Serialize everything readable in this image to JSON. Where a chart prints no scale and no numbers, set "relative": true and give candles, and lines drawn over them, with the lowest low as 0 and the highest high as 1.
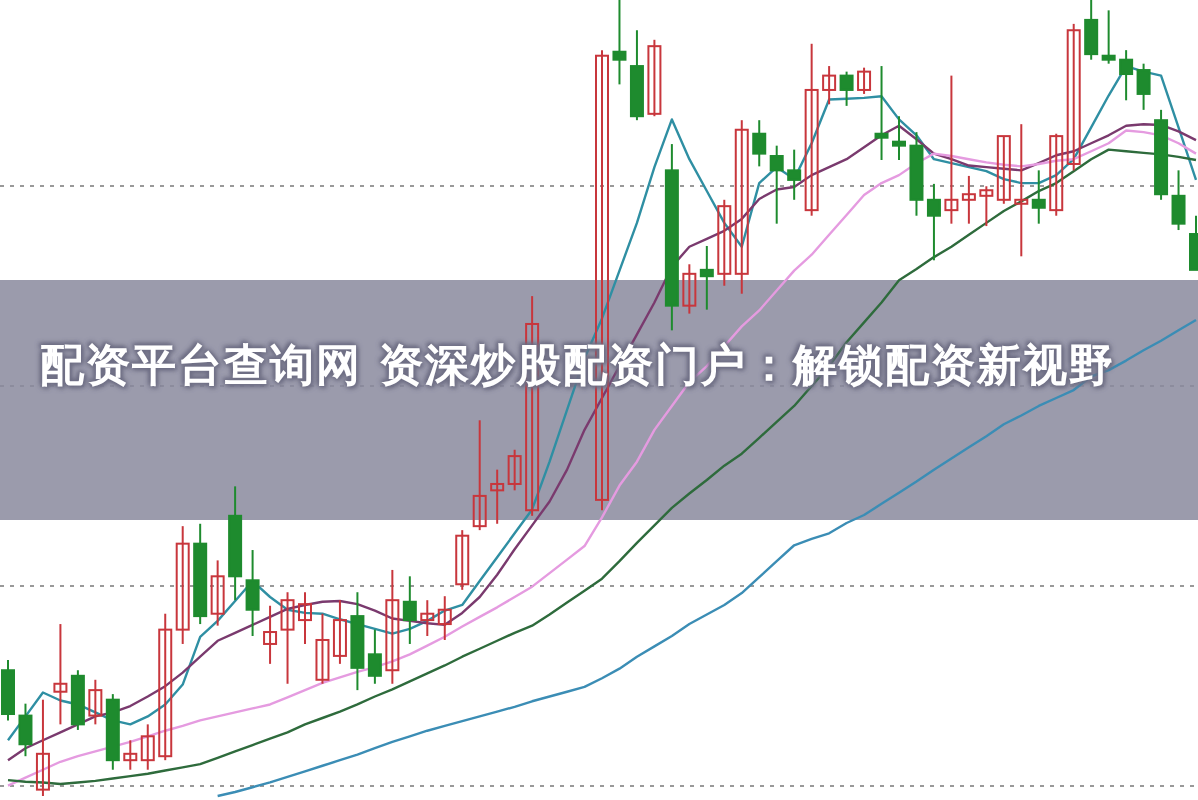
{
  "chart_data": {
    "type": "candlestick",
    "title": "配资平台查询网 资深炒股配资门户：解锁配资新视野",
    "relative": true,
    "grid": "y",
    "categories": [
      null,
      null,
      null,
      null,
      null,
      null,
      null,
      null,
      null,
      null,
      null,
      null,
      null,
      null,
      null,
      null,
      null,
      null,
      null,
      null,
      null,
      null,
      null,
      null,
      null,
      null,
      null,
      null,
      null,
      null,
      null,
      null,
      null,
      null,
      null,
      null,
      null,
      null,
      null,
      null,
      null,
      null,
      null,
      null,
      null,
      null,
      null,
      null,
      null,
      null,
      null,
      null,
      null,
      null,
      null,
      null,
      null,
      null,
      null,
      null,
      null,
      null,
      null,
      null,
      null,
      null,
      null,
      null,
      null
    ],
    "ohlc": [
      [
        0.158,
        0.171,
        0.095,
        0.103
      ],
      [
        0.101,
        0.116,
        0.05,
        0.065
      ],
      [
        0.008,
        0.121,
        0,
        0.053
      ],
      [
        0.131,
        0.216,
        0.09,
        0.141
      ],
      [
        0.151,
        0.158,
        0.083,
        0.09
      ],
      [
        0.101,
        0.146,
        0.09,
        0.133
      ],
      [
        0.121,
        0.128,
        0.033,
        0.045
      ],
      [
        0.045,
        0.07,
        0.033,
        0.053
      ],
      [
        0.045,
        0.09,
        0.033,
        0.075
      ],
      [
        0.05,
        0.229,
        0.045,
        0.209
      ],
      [
        0.209,
        0.339,
        0.191,
        0.317
      ],
      [
        0.317,
        0.342,
        0.216,
        0.226
      ],
      [
        0.229,
        0.296,
        0.214,
        0.276
      ],
      [
        0.352,
        0.389,
        0.246,
        0.276
      ],
      [
        0.271,
        0.309,
        0.201,
        0.234
      ],
      [
        0.191,
        0.239,
        0.166,
        0.206
      ],
      [
        0.209,
        0.256,
        0.141,
        0.246
      ],
      [
        0.221,
        0.256,
        0.191,
        0.241
      ],
      [
        0.146,
        0.229,
        0.141,
        0.196
      ],
      [
        0.176,
        0.246,
        0.166,
        0.221
      ],
      [
        0.226,
        0.256,
        0.133,
        0.161
      ],
      [
        0.178,
        0.209,
        0.141,
        0.151
      ],
      [
        0.158,
        0.284,
        0.141,
        0.246
      ],
      [
        0.244,
        0.276,
        0.191,
        0.221
      ],
      [
        0.221,
        0.246,
        0.201,
        0.229
      ],
      [
        0.216,
        0.251,
        0.196,
        0.234
      ],
      [
        0.266,
        0.334,
        0.259,
        0.327
      ],
      [
        0.339,
        0.472,
        0.334,
        0.377
      ],
      [
        0.384,
        0.41,
        0.342,
        0.392
      ],
      [
        0.392,
        0.435,
        0.384,
        0.427
      ],
      [
        0.359,
        0.628,
        0.352,
        0.593
      ],
      null,
      null,
      null,
      [
        0.372,
        0.937,
        0.359,
        0.93
      ],
      [
        0.935,
        1,
        0.894,
        0.925
      ],
      [
        0.917,
        0.962,
        0.849,
        0.854
      ],
      [
        0.857,
        0.95,
        0.854,
        0.942
      ],
      [
        0.786,
        0.819,
        0.585,
        0.616
      ],
      [
        0.616,
        0.668,
        0.606,
        0.656
      ],
      [
        0.661,
        0.691,
        0.611,
        0.653
      ],
      [
        0.656,
        0.749,
        0.641,
        0.741
      ],
      [
        0.656,
        0.849,
        0.631,
        0.837
      ],
      [
        0.832,
        0.849,
        0.791,
        0.807
      ],
      [
        0.804,
        0.817,
        0.719,
        0.786
      ],
      [
        0.786,
        0.812,
        0.749,
        0.774
      ],
      [
        0.736,
        0.945,
        0.729,
        0.887
      ],
      [
        0.887,
        0.917,
        0.869,
        0.905
      ],
      [
        0.905,
        0.91,
        0.867,
        0.887
      ],
      [
        0.887,
        0.915,
        0.882,
        0.91
      ],
      [
        0.832,
        0.917,
        0.799,
        0.827
      ],
      [
        0.822,
        0.854,
        0.799,
        0.817
      ],
      [
        0.817,
        0.834,
        0.729,
        0.749
      ],
      [
        0.749,
        0.769,
        0.673,
        0.729
      ],
      [
        0.736,
        0.905,
        0.719,
        0.749
      ],
      [
        0.749,
        0.779,
        0.719,
        0.756
      ],
      [
        0.754,
        0.766,
        0.716,
        0.761
      ],
      [
        0.749,
        0.829,
        0.744,
        0.829
      ],
      [
        0.744,
        0.844,
        0.678,
        0.749
      ],
      [
        0.749,
        0.786,
        0.719,
        0.739
      ],
      [
        0.736,
        0.832,
        0.729,
        0.829
      ],
      [
        0.794,
        0.97,
        0.786,
        0.962
      ],
      [
        0.975,
        1,
        0.925,
        0.932
      ],
      [
        0.93,
        0.987,
        0.92,
        0.925
      ],
      [
        0.925,
        0.937,
        0.874,
        0.907
      ],
      [
        0.912,
        0.92,
        0.862,
        0.882
      ],
      [
        0.849,
        0.862,
        0.749,
        0.756
      ],
      [
        0.754,
        0.786,
        0.711,
        0.719
      ],
      [
        0.706,
        0.729,
        0.661,
        0.661
      ]
    ],
    "series": [
      {
        "type": "line",
        "color": "#2f8fa3",
        "values": [
          0.07,
          0.1,
          0.13,
          0.12,
          0.115,
          0.105,
          0.095,
          0.09,
          0.1,
          0.115,
          0.14,
          0.2,
          0.22,
          0.245,
          0.27,
          0.25,
          0.234,
          0.23,
          0.229,
          0.222,
          0.216,
          0.21,
          0.204,
          0.21,
          0.22,
          0.233,
          0.24,
          0.27,
          0.3,
          0.33,
          0.36,
          0.42,
          null,
          0.55,
          0.6,
          0.66,
          0.72,
          0.79,
          0.85,
          0.8,
          0.76,
          0.72,
          0.69,
          0.77,
          0.79,
          0.775,
          0.82,
          0.875,
          0.876,
          0.877,
          0.879,
          0.85,
          0.83,
          0.8,
          0.795,
          0.79,
          0.785,
          0.775,
          0.77,
          0.77,
          0.78,
          0.8,
          0.84,
          0.88,
          0.917,
          0.91,
          0.905,
          0.84,
          0.774
        ]
      },
      {
        "type": "line",
        "color": "#7a3a6e",
        "values": [
          0.045,
          0.06,
          0.07,
          0.08,
          0.09,
          0.1,
          0.105,
          0.113,
          0.125,
          0.138,
          0.155,
          0.175,
          0.195,
          0.205,
          0.215,
          0.225,
          0.235,
          0.24,
          0.244,
          0.245,
          0.241,
          0.233,
          0.223,
          0.22,
          0.217,
          0.215,
          0.23,
          0.25,
          0.278,
          0.31,
          0.34,
          0.37,
          0.41,
          0.46,
          0.5,
          0.54,
          0.58,
          0.62,
          0.665,
          0.69,
          0.7,
          0.71,
          0.725,
          0.75,
          0.762,
          0.765,
          0.78,
          0.79,
          0.8,
          0.815,
          0.83,
          0.842,
          0.825,
          0.807,
          0.8,
          0.792,
          0.79,
          0.788,
          0.786,
          0.795,
          0.805,
          0.81,
          0.82,
          0.83,
          0.842,
          0.844,
          0.843,
          0.835,
          0.824
        ]
      },
      {
        "type": "line",
        "color": "#e59be0",
        "values": [
          0.013,
          0.023,
          0.033,
          0.043,
          0.05,
          0.056,
          0.062,
          0.068,
          0.075,
          0.082,
          0.088,
          0.095,
          0.1,
          0.105,
          0.11,
          0.115,
          0.124,
          0.133,
          0.142,
          0.149,
          0.156,
          0.162,
          0.169,
          0.178,
          0.189,
          0.2,
          0.213,
          0.225,
          0.237,
          0.25,
          0.263,
          0.28,
          0.297,
          0.314,
          0.35,
          0.39,
          0.42,
          0.46,
          0.49,
          0.52,
          0.54,
          0.565,
          0.59,
          0.61,
          0.635,
          0.66,
          0.68,
          0.705,
          0.73,
          0.755,
          0.77,
          0.78,
          0.795,
          0.807,
          0.804,
          0.8,
          0.796,
          0.793,
          0.791,
          0.794,
          0.798,
          0.8,
          0.81,
          0.82,
          0.836,
          0.834,
          0.83,
          0.82,
          0.807
        ]
      },
      {
        "type": "line",
        "color": "#2e6b3c",
        "values": [
          0.02,
          0.018,
          0.017,
          0.015,
          0.017,
          0.019,
          0.022,
          0.025,
          0.028,
          0.032,
          0.036,
          0.04,
          0.048,
          0.056,
          0.064,
          0.072,
          0.08,
          0.09,
          0.098,
          0.106,
          0.115,
          0.125,
          0.134,
          0.144,
          0.154,
          0.164,
          0.175,
          0.185,
          0.195,
          0.205,
          0.214,
          0.228,
          0.243,
          0.258,
          0.273,
          0.295,
          0.318,
          0.34,
          0.362,
          0.38,
          0.397,
          0.415,
          0.43,
          0.45,
          0.47,
          0.49,
          0.515,
          0.54,
          0.57,
          0.595,
          0.62,
          0.648,
          0.662,
          0.677,
          0.69,
          0.705,
          0.72,
          0.735,
          0.747,
          0.76,
          0.77,
          0.785,
          0.8,
          0.812,
          0.81,
          0.808,
          0.806,
          0.803,
          0.799
        ]
      },
      {
        "type": "line",
        "color": "#3b8db5",
        "values": [
          null,
          null,
          null,
          null,
          null,
          null,
          null,
          null,
          null,
          null,
          null,
          null,
          0,
          0.005,
          0.011,
          0.017,
          0.024,
          0.031,
          0.038,
          0.045,
          0.052,
          0.06,
          0.068,
          0.075,
          0.082,
          0.088,
          0.094,
          0.1,
          0.106,
          0.112,
          0.119,
          0.125,
          0.131,
          0.137,
          0.148,
          0.16,
          0.175,
          0.188,
          0.201,
          0.216,
          0.228,
          0.24,
          0.255,
          0.275,
          0.295,
          0.315,
          0.323,
          0.33,
          0.343,
          0.353,
          0.367,
          0.381,
          0.395,
          0.41,
          0.424,
          0.438,
          0.452,
          0.467,
          0.478,
          0.49,
          0.5,
          0.51,
          0.527,
          0.535,
          0.547,
          0.56,
          0.572,
          0.585,
          0.598
        ]
      }
    ]
  }
}
